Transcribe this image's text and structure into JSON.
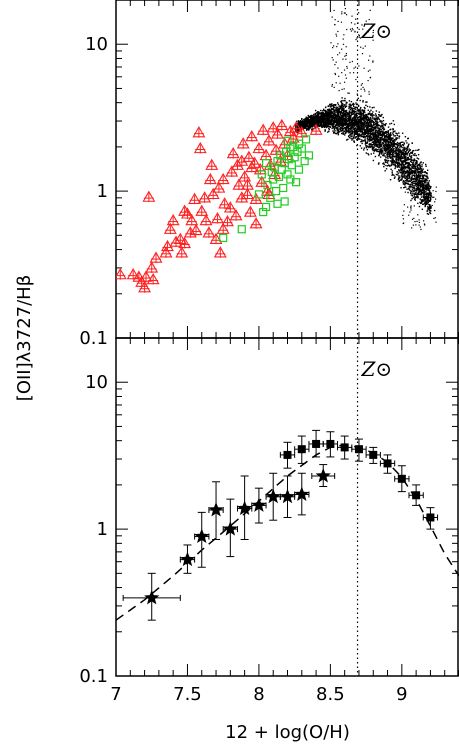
{
  "chart_data": [
    {
      "type": "scatter",
      "panel": "top",
      "xlim": [
        7.0,
        9.4
      ],
      "ylim": [
        0.1,
        20
      ],
      "yscale": "log",
      "ylabel": "[OII]λ3727/Hβ",
      "y_ticks": [
        0.1,
        1,
        10
      ],
      "y_tick_labels": [
        "0.1",
        "1",
        "10"
      ],
      "reference_line": {
        "x": 8.69,
        "label": "Z⊙",
        "style": "dotted"
      },
      "grid": false,
      "series": [
        {
          "marker": "triangle-with-errorbar",
          "color": "#ff2020",
          "points": [
            [
              7.03,
              0.27
            ],
            [
              7.12,
              0.27
            ],
            [
              7.16,
              0.26
            ],
            [
              7.18,
              0.24
            ],
            [
              7.2,
              0.22
            ],
            [
              7.21,
              0.26
            ],
            [
              7.23,
              0.91
            ],
            [
              7.25,
              0.3
            ],
            [
              7.26,
              0.25
            ],
            [
              7.28,
              0.35
            ],
            [
              7.35,
              0.38
            ],
            [
              7.36,
              0.42
            ],
            [
              7.38,
              0.55
            ],
            [
              7.4,
              0.63
            ],
            [
              7.42,
              0.45
            ],
            [
              7.45,
              0.47
            ],
            [
              7.46,
              0.38
            ],
            [
              7.48,
              0.73
            ],
            [
              7.48,
              0.44
            ],
            [
              7.5,
              0.7
            ],
            [
              7.52,
              0.52
            ],
            [
              7.53,
              0.63
            ],
            [
              7.55,
              0.88
            ],
            [
              7.56,
              0.54
            ],
            [
              7.58,
              2.5
            ],
            [
              7.59,
              1.95
            ],
            [
              7.6,
              0.73
            ],
            [
              7.62,
              0.9
            ],
            [
              7.63,
              0.63
            ],
            [
              7.65,
              0.52
            ],
            [
              7.66,
              1.2
            ],
            [
              7.67,
              1.5
            ],
            [
              7.68,
              0.95
            ],
            [
              7.7,
              0.47
            ],
            [
              7.71,
              0.65
            ],
            [
              7.72,
              1.05
            ],
            [
              7.73,
              0.38
            ],
            [
              7.75,
              1.2
            ],
            [
              7.76,
              0.82
            ],
            [
              7.78,
              0.62
            ],
            [
              7.8,
              0.77
            ],
            [
              7.81,
              1.35
            ],
            [
              7.82,
              1.8
            ],
            [
              7.84,
              0.68
            ],
            [
              7.85,
              1.5
            ],
            [
              7.86,
              1.1
            ],
            [
              7.88,
              0.9
            ],
            [
              7.89,
              2.1
            ],
            [
              7.9,
              1.25
            ],
            [
              7.92,
              0.95
            ],
            [
              7.93,
              1.7
            ],
            [
              7.94,
              0.72
            ],
            [
              7.95,
              2.35
            ],
            [
              7.97,
              1.55
            ],
            [
              7.98,
              0.88
            ],
            [
              8.0,
              1.95
            ],
            [
              8.01,
              1.4
            ],
            [
              8.02,
              1.15
            ],
            [
              8.03,
              2.6
            ],
            [
              8.05,
              1.75
            ],
            [
              8.06,
              1.0
            ],
            [
              8.07,
              2.2
            ],
            [
              8.08,
              1.5
            ],
            [
              8.1,
              2.7
            ],
            [
              8.11,
              1.3
            ],
            [
              8.12,
              1.9
            ],
            [
              8.13,
              2.45
            ],
            [
              8.15,
              1.6
            ],
            [
              8.16,
              2.8
            ],
            [
              8.18,
              2.1
            ],
            [
              8.2,
              1.75
            ],
            [
              8.22,
              2.55
            ],
            [
              8.24,
              2.3
            ],
            [
              8.26,
              2.7
            ],
            [
              8.3,
              2.5
            ],
            [
              8.4,
              2.6
            ],
            [
              7.92,
              1.1
            ],
            [
              7.98,
              0.6
            ],
            [
              7.95,
              1.45
            ],
            [
              8.07,
              0.95
            ],
            [
              7.88,
              1.6
            ],
            [
              7.75,
              0.55
            ]
          ]
        },
        {
          "marker": "square",
          "color": "#22cc22",
          "points": [
            [
              7.75,
              0.48
            ],
            [
              7.88,
              0.55
            ],
            [
              8.0,
              0.95
            ],
            [
              8.02,
              1.3
            ],
            [
              8.03,
              0.72
            ],
            [
              8.05,
              1.55
            ],
            [
              8.06,
              1.1
            ],
            [
              8.08,
              0.9
            ],
            [
              8.09,
              1.35
            ],
            [
              8.1,
              1.2
            ],
            [
              8.11,
              1.45
            ],
            [
              8.12,
              1.0
            ],
            [
              8.13,
              1.6
            ],
            [
              8.14,
              1.25
            ],
            [
              8.15,
              1.75
            ],
            [
              8.16,
              1.4
            ],
            [
              8.17,
              1.05
            ],
            [
              8.18,
              1.55
            ],
            [
              8.19,
              1.85
            ],
            [
              8.2,
              1.3
            ],
            [
              8.21,
              1.65
            ],
            [
              8.22,
              1.95
            ],
            [
              8.23,
              1.5
            ],
            [
              8.24,
              2.0
            ],
            [
              8.25,
              1.7
            ],
            [
              8.26,
              1.15
            ],
            [
              8.27,
              1.85
            ],
            [
              8.28,
              2.1
            ],
            [
              8.3,
              1.95
            ],
            [
              8.32,
              1.6
            ],
            [
              8.33,
              2.25
            ],
            [
              8.35,
              1.75
            ],
            [
              8.18,
              0.85
            ],
            [
              8.13,
              0.82
            ],
            [
              8.22,
              1.2
            ],
            [
              8.2,
              2.2
            ],
            [
              8.05,
              0.78
            ],
            [
              8.28,
              1.4
            ]
          ]
        },
        {
          "marker": "dot",
          "color": "#000000",
          "description": "dense cloud of galaxies",
          "envelope": [
            [
              8.25,
              2.5,
              3.0
            ],
            [
              8.4,
              2.6,
              3.6
            ],
            [
              8.5,
              2.4,
              4.2
            ],
            [
              8.6,
              2.1,
              4.6
            ],
            [
              8.7,
              1.9,
              4.5
            ],
            [
              8.8,
              1.6,
              4.0
            ],
            [
              8.9,
              1.25,
              3.4
            ],
            [
              9.0,
              0.95,
              2.8
            ],
            [
              9.1,
              0.75,
              2.1
            ],
            [
              9.15,
              0.65,
              1.8
            ],
            [
              9.2,
              0.62,
              1.2
            ]
          ]
        }
      ]
    },
    {
      "type": "scatter",
      "panel": "bottom",
      "xlim": [
        7.0,
        9.4
      ],
      "ylim": [
        0.1,
        20
      ],
      "yscale": "log",
      "xlabel": "12 + log(O/H)",
      "x_ticks": [
        7,
        7.5,
        8,
        8.5,
        9
      ],
      "x_tick_labels": [
        "7",
        "7.5",
        "8",
        "8.5",
        "9"
      ],
      "y_ticks": [
        0.1,
        1,
        10
      ],
      "y_tick_labels": [
        "0.1",
        "1",
        "10"
      ],
      "reference_line": {
        "x": 8.69,
        "label": "Z⊙",
        "style": "dotted"
      },
      "grid": false,
      "series": [
        {
          "marker": "star",
          "color": "#000000",
          "points": [
            {
              "x": 7.25,
              "y": 0.34,
              "xerr": 0.2,
              "ylo": 0.24,
              "yhi": 0.5
            },
            {
              "x": 7.5,
              "y": 0.62,
              "ylo": 0.5,
              "yhi": 0.78
            },
            {
              "x": 7.6,
              "y": 0.89,
              "ylo": 0.55,
              "yhi": 1.3
            },
            {
              "x": 7.7,
              "y": 1.35,
              "ylo": 0.85,
              "yhi": 2.1
            },
            {
              "x": 7.8,
              "y": 1.0,
              "ylo": 0.65,
              "yhi": 1.6
            },
            {
              "x": 7.9,
              "y": 1.38,
              "ylo": 0.85,
              "yhi": 2.3
            },
            {
              "x": 8.0,
              "y": 1.45,
              "ylo": 1.1,
              "yhi": 1.9
            },
            {
              "x": 8.1,
              "y": 1.66,
              "ylo": 1.15,
              "yhi": 2.4
            },
            {
              "x": 8.2,
              "y": 1.66,
              "ylo": 1.2,
              "yhi": 2.3
            },
            {
              "x": 8.3,
              "y": 1.72,
              "ylo": 1.25,
              "yhi": 2.4
            },
            {
              "x": 8.45,
              "y": 2.3,
              "xerr": 0.08,
              "ylo": 1.95,
              "yhi": 2.75
            }
          ]
        },
        {
          "marker": "square",
          "color": "#000000",
          "points": [
            {
              "x": 8.2,
              "y": 3.2,
              "ylo": 2.6,
              "yhi": 3.9
            },
            {
              "x": 8.3,
              "y": 3.5,
              "ylo": 2.8,
              "yhi": 4.3
            },
            {
              "x": 8.4,
              "y": 3.8,
              "ylo": 3.1,
              "yhi": 4.7
            },
            {
              "x": 8.5,
              "y": 3.8,
              "ylo": 3.1,
              "yhi": 4.6
            },
            {
              "x": 8.6,
              "y": 3.6,
              "ylo": 3.0,
              "yhi": 4.3
            },
            {
              "x": 8.7,
              "y": 3.5,
              "ylo": 2.9,
              "yhi": 4.1
            },
            {
              "x": 8.8,
              "y": 3.2,
              "ylo": 2.8,
              "yhi": 3.6
            },
            {
              "x": 8.9,
              "y": 2.8,
              "ylo": 2.4,
              "yhi": 3.2
            },
            {
              "x": 9.0,
              "y": 2.2,
              "ylo": 1.8,
              "yhi": 2.7
            },
            {
              "x": 9.1,
              "y": 1.7,
              "ylo": 1.45,
              "yhi": 2.0
            },
            {
              "x": 9.2,
              "y": 1.2,
              "ylo": 1.0,
              "yhi": 1.4
            }
          ]
        },
        {
          "marker": "dashed-line",
          "color": "#000000",
          "x": [
            7.0,
            7.2,
            7.4,
            7.6,
            7.8,
            8.0,
            8.2,
            8.4,
            8.5,
            8.6,
            8.7,
            8.8,
            8.9,
            9.0,
            9.1,
            9.2,
            9.3,
            9.4
          ],
          "values": [
            0.24,
            0.33,
            0.48,
            0.72,
            1.05,
            1.55,
            2.3,
            3.2,
            3.6,
            3.75,
            3.6,
            3.3,
            2.85,
            2.25,
            1.6,
            1.05,
            0.68,
            0.48
          ]
        }
      ]
    }
  ]
}
